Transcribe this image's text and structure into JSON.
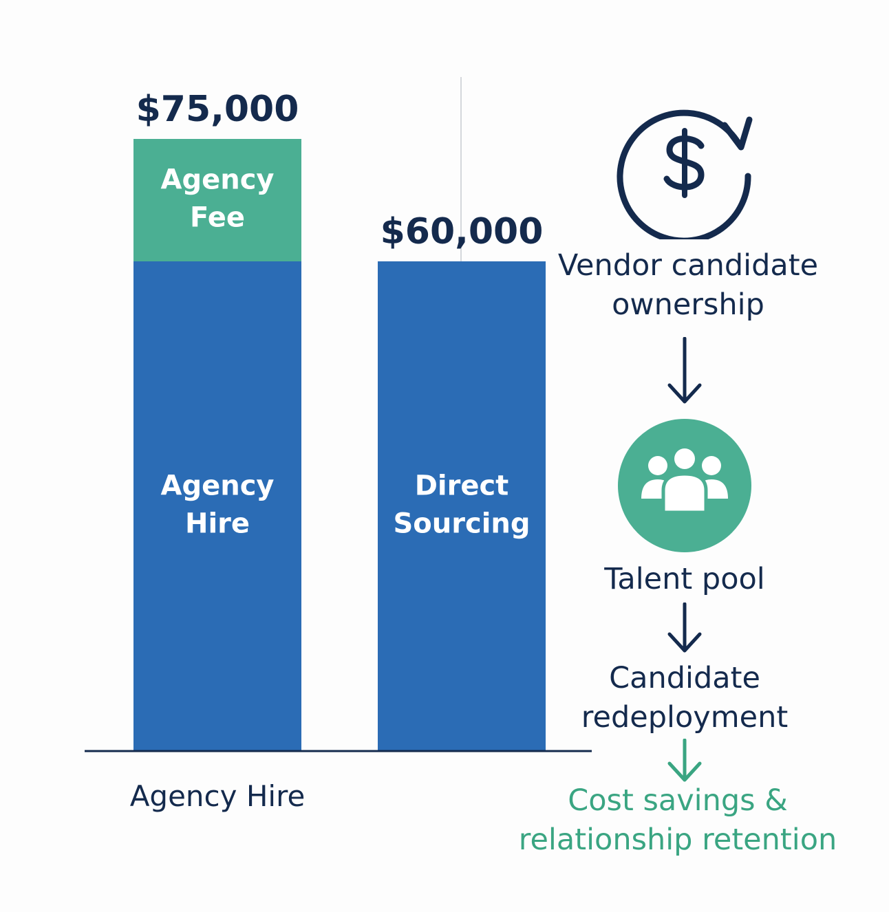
{
  "chart_data": {
    "type": "bar",
    "stacked": true,
    "categories": [
      "Agency Hire",
      "Direct Sourcing"
    ],
    "series": [
      {
        "name": "Agency Hire",
        "values": [
          60000,
          0
        ],
        "color": "#2b6cb5"
      },
      {
        "name": "Agency Fee",
        "values": [
          15000,
          0
        ],
        "color": "#4baf93"
      },
      {
        "name": "Direct Sourcing",
        "values": [
          0,
          60000
        ],
        "color": "#2b6cb5"
      }
    ],
    "totals": [
      75000,
      60000
    ],
    "total_labels": [
      "$75,000",
      "$60,000"
    ],
    "segment_labels": [
      [
        "Agency",
        "Hire"
      ],
      [
        "Agency",
        "Fee"
      ],
      [
        "Direct",
        "Sourcing"
      ]
    ],
    "x_tick_labels": [
      "Agency Hire",
      ""
    ],
    "ylim": [
      0,
      75000
    ],
    "grid": false,
    "legend": "none",
    "title": "",
    "xlabel": "",
    "ylabel": ""
  },
  "flow": {
    "steps": [
      {
        "lines": [
          "Vendor candidate",
          "ownership"
        ],
        "icon": "dollar-cycle-icon"
      },
      {
        "lines": [
          "Talent pool"
        ],
        "icon": "people-group-icon"
      },
      {
        "lines": [
          "Candidate",
          "redeployment"
        ]
      },
      {
        "lines": [
          "Cost savings &",
          "relationship retention"
        ]
      }
    ],
    "arrows": 3
  },
  "colors": {
    "navy": "#142a4d",
    "blue": "#2b6cb5",
    "green": "#4baf93",
    "outcome_green": "#3aa582",
    "divider": "#d4d7dc"
  }
}
